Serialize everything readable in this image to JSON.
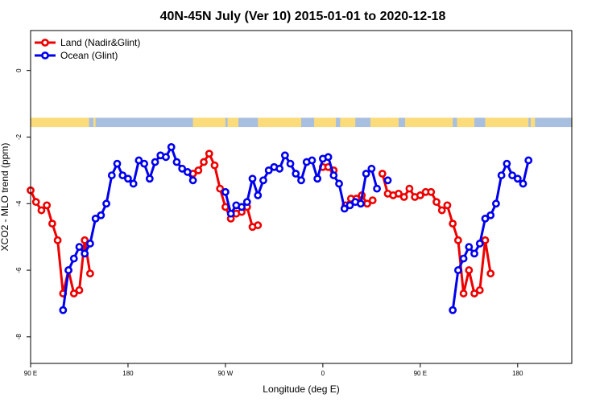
{
  "chart_data": {
    "type": "line",
    "title": "40N-45N July (Ver 10)   2015-01-01 to 2020-12-18",
    "xlabel": "Longitude (deg E)",
    "ylabel": "XCO2 - MLO trend (ppm)",
    "xlim": [
      90,
      590
    ],
    "ylim": [
      -8.8,
      1.2
    ],
    "x_ticks": [
      {
        "value": 90,
        "label": "90 E"
      },
      {
        "value": 180,
        "label": "180"
      },
      {
        "value": 270,
        "label": "90 W"
      },
      {
        "value": 360,
        "label": "0"
      },
      {
        "value": 450,
        "label": "90 E"
      },
      {
        "value": 540,
        "label": "180"
      }
    ],
    "y_ticks": [
      {
        "value": 0,
        "label": "0"
      },
      {
        "value": -2,
        "label": "-2"
      },
      {
        "value": -4,
        "label": "-4"
      },
      {
        "value": -6,
        "label": "-6"
      },
      {
        "value": -8,
        "label": "-8"
      }
    ],
    "legend_position": "top-left",
    "land_ocean_band": {
      "y_range": [
        -1.42,
        -1.7
      ],
      "land_color": "#FCDC7A",
      "ocean_color": "#A8BFE0",
      "land_segments": [
        [
          90,
          144
        ],
        [
          148,
          150
        ],
        [
          240,
          270
        ],
        [
          272,
          282
        ],
        [
          300,
          340
        ],
        [
          352,
          372
        ],
        [
          376,
          390
        ],
        [
          404,
          430
        ],
        [
          436,
          480
        ],
        [
          484,
          500
        ],
        [
          510,
          550
        ],
        [
          552,
          556
        ],
        [
          590,
          590
        ]
      ]
    },
    "series": [
      {
        "name": "Land (Nadir&Glint)",
        "color": "#EE0000",
        "segments": [
          {
            "x": [
              90,
              95,
              100,
              105,
              110,
              115,
              120,
              125,
              130,
              135,
              140,
              145
            ],
            "y": [
              -3.6,
              -3.95,
              -4.2,
              -4.05,
              -4.6,
              -5.1,
              -6.7,
              -6.0,
              -6.7,
              -6.6,
              -5.1,
              -6.1
            ]
          },
          {
            "x": [
              240,
              245,
              250,
              255,
              260,
              265,
              270,
              275,
              280,
              285
            ],
            "y": [
              -3.1,
              -3.0,
              -2.75,
              -2.5,
              -2.85,
              -3.55,
              -4.1,
              -4.45,
              -4.3,
              -4.25
            ]
          },
          {
            "x": [
              290,
              295,
              300
            ],
            "y": [
              -4.1,
              -4.7,
              -4.65
            ]
          },
          {
            "x": [
              360,
              365,
              370
            ],
            "y": [
              -2.9,
              -2.9,
              -3.0
            ]
          },
          {
            "x": [
              415,
              420,
              425,
              430,
              435,
              440,
              445,
              450,
              455,
              460,
              465,
              470,
              475,
              480,
              485,
              490,
              495,
              500,
              505,
              510,
              515
            ],
            "y": [
              -3.1,
              -3.7,
              -3.75,
              -3.7,
              -3.8,
              -3.55,
              -3.8,
              -3.75,
              -3.65,
              -3.65,
              -3.95,
              -4.2,
              -4.05,
              -4.6,
              -5.1,
              -6.7,
              -6.0,
              -6.7,
              -6.6,
              -5.1,
              -6.1
            ]
          },
          {
            "x": [
              381,
              386,
              391,
              396,
              401,
              406
            ],
            "y": [
              -4.05,
              -3.85,
              -3.85,
              -3.75,
              -4.0,
              -3.9
            ]
          }
        ]
      },
      {
        "name": "Ocean (Glint)",
        "color": "#0000EE",
        "segments": [
          {
            "x": [
              120,
              125,
              130,
              135,
              140,
              145,
              150,
              155,
              160,
              165,
              170,
              175,
              180,
              185,
              190,
              195,
              200,
              205,
              210,
              215,
              220,
              225,
              230,
              235,
              240
            ],
            "y": [
              -7.2,
              -6.0,
              -5.65,
              -5.3,
              -5.5,
              -5.2,
              -4.45,
              -4.35,
              -4.0,
              -3.15,
              -2.8,
              -3.15,
              -3.25,
              -3.4,
              -2.7,
              -2.8,
              -3.25,
              -2.75,
              -2.55,
              -2.6,
              -2.3,
              -2.75,
              -2.95,
              -3.05,
              -3.3
            ]
          },
          {
            "x": [
              270,
              275,
              280,
              285,
              290,
              295,
              300,
              305,
              310,
              315,
              320,
              325,
              330,
              335,
              340,
              345,
              350,
              355,
              360,
              365,
              370,
              375,
              380,
              385,
              390,
              395,
              400,
              405,
              410
            ],
            "y": [
              -3.65,
              -4.3,
              -4.05,
              -4.1,
              -3.95,
              -3.25,
              -3.75,
              -3.3,
              -3.0,
              -2.9,
              -2.95,
              -2.55,
              -2.8,
              -3.1,
              -3.3,
              -2.75,
              -2.7,
              -3.25,
              -2.65,
              -2.6,
              -3.15,
              -3.4,
              -4.15,
              -4.05,
              -3.95,
              -4.0,
              -3.1,
              -2.95,
              -3.55
            ]
          },
          {
            "x": [
              420
            ],
            "y": [
              -3.3
            ]
          },
          {
            "x": [
              480,
              485,
              490,
              495,
              500,
              505,
              510,
              515,
              520,
              525,
              530,
              535,
              540,
              545,
              550
            ],
            "y": [
              -7.2,
              -6.0,
              -5.65,
              -5.3,
              -5.5,
              -5.2,
              -4.45,
              -4.35,
              -4.0,
              -3.15,
              -2.8,
              -3.15,
              -3.25,
              -3.4,
              -2.7
            ]
          }
        ]
      }
    ]
  }
}
